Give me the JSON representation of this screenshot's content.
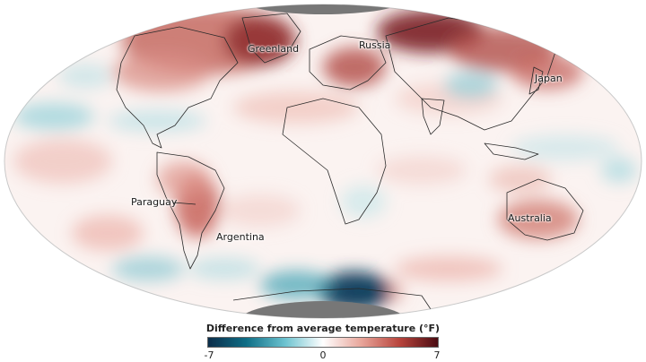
{
  "map": {
    "labels": {
      "greenland": "Greenland",
      "russia": "Russia",
      "japan": "Japan",
      "paraguay": "Paraguay",
      "argentina": "Argentina",
      "australia": "Australia"
    }
  },
  "legend": {
    "title": "Difference from average temperature (°F)",
    "min_label": "-7",
    "mid_label": "0",
    "max_label": "7",
    "colors": [
      "#0b2d4a",
      "#0f6e86",
      "#6bc2cf",
      "#ffffff",
      "#e8a59a",
      "#b8443c",
      "#4a0b12"
    ]
  }
}
